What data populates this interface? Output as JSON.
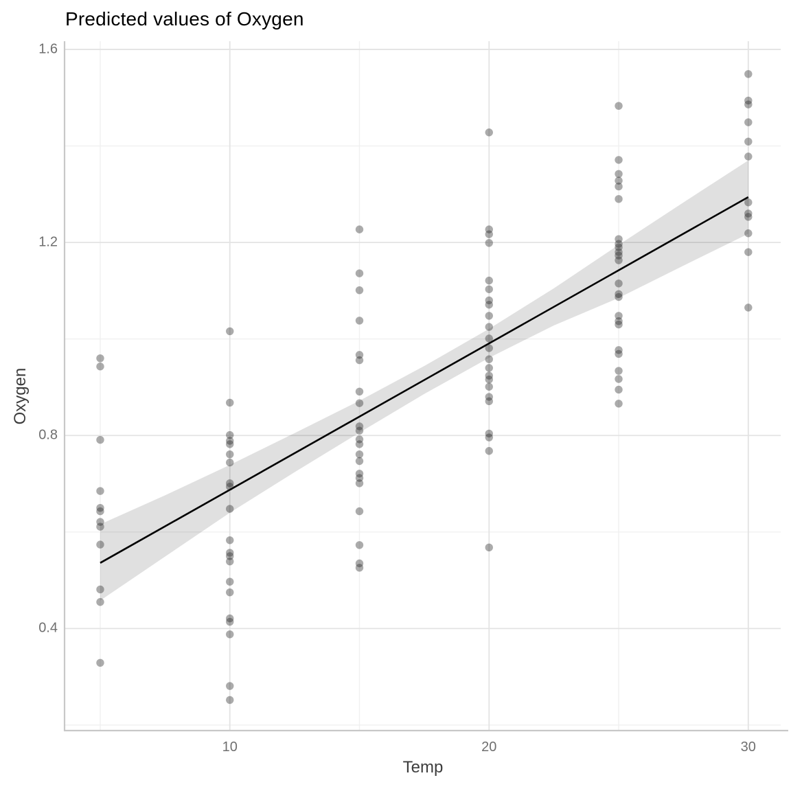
{
  "title": "Predicted values of Oxygen",
  "colors": {
    "background": "#ffffff",
    "point_fill": "rgba(35,35,35,0.38)",
    "regression_line": "#000000",
    "confidence_band": "rgba(0,0,0,0.12)",
    "grid_major": "#e3e3e3",
    "grid_minor": "#f0f0f0",
    "axis_line": "#c8c8c8",
    "tick_text": "#6f6f6f",
    "axis_title_text": "#3d3d3d",
    "title_text": "#000000"
  },
  "chart_data": {
    "type": "scatter",
    "title": "Predicted values of Oxygen",
    "xlabel": "Temp",
    "ylabel": "Oxygen",
    "legend": "none",
    "grid": true,
    "xlim": [
      3.65,
      31.25
    ],
    "ylim": [
      0.19,
      1.617
    ],
    "x_ticks": {
      "values": [
        10,
        20,
        30
      ],
      "labels": [
        "10",
        "20",
        "30"
      ]
    },
    "x_minor": [
      5,
      15,
      25
    ],
    "y_ticks": {
      "values": [
        0.4,
        0.8,
        1.2,
        1.6
      ],
      "labels": [
        "0.4",
        "0.8",
        "1.2",
        "1.6"
      ]
    },
    "y_minor": [
      0.2,
      0.6,
      1.0,
      1.4
    ],
    "point_alpha": 0.38,
    "groups": [
      {
        "temp": 5,
        "oxygen": [
          0.96,
          0.943,
          0.791,
          0.685,
          0.65,
          0.643,
          0.621,
          0.611,
          0.574,
          0.481,
          0.455,
          0.329
        ]
      },
      {
        "temp": 10,
        "oxygen": [
          1.016,
          0.868,
          0.801,
          0.789,
          0.782,
          0.761,
          0.744,
          0.701,
          0.694,
          0.648,
          0.583,
          0.557,
          0.55,
          0.539,
          0.497,
          0.475,
          0.421,
          0.414,
          0.388,
          0.281,
          0.252
        ]
      },
      {
        "temp": 15,
        "oxygen": [
          1.227,
          1.136,
          1.101,
          1.038,
          0.967,
          0.956,
          0.891,
          0.867,
          0.819,
          0.81,
          0.792,
          0.782,
          0.761,
          0.747,
          0.721,
          0.712,
          0.701,
          0.643,
          0.573,
          0.535,
          0.526
        ]
      },
      {
        "temp": 20,
        "oxygen": [
          1.428,
          1.227,
          1.217,
          1.199,
          1.121,
          1.103,
          1.08,
          1.071,
          1.048,
          1.025,
          1.001,
          0.981,
          0.958,
          0.94,
          0.924,
          0.916,
          0.901,
          0.88,
          0.871,
          0.804,
          0.796,
          0.768,
          0.568
        ]
      },
      {
        "temp": 25,
        "oxygen": [
          1.483,
          1.371,
          1.342,
          1.328,
          1.316,
          1.29,
          1.207,
          1.197,
          1.19,
          1.18,
          1.173,
          1.163,
          1.115,
          1.093,
          1.087,
          1.048,
          1.037,
          1.03,
          0.977,
          0.969,
          0.934,
          0.917,
          0.895,
          0.866
        ]
      },
      {
        "temp": 30,
        "oxygen": [
          1.549,
          1.494,
          1.486,
          1.449,
          1.409,
          1.378,
          1.283,
          1.26,
          1.253,
          1.219,
          1.18,
          1.065
        ]
      }
    ],
    "regression_line": {
      "x": [
        5,
        30
      ],
      "y": [
        0.536,
        1.294
      ]
    },
    "confidence_band": {
      "t": [
        5,
        7.5,
        10,
        12.5,
        15,
        17.5,
        20,
        22.5,
        25,
        27.5,
        30
      ],
      "upper": [
        0.616,
        0.676,
        0.739,
        0.805,
        0.872,
        0.944,
        1.021,
        1.105,
        1.195,
        1.283,
        1.37
      ],
      "lower": [
        0.458,
        0.549,
        0.64,
        0.724,
        0.806,
        0.886,
        0.961,
        1.028,
        1.085,
        1.152,
        1.218
      ]
    }
  }
}
